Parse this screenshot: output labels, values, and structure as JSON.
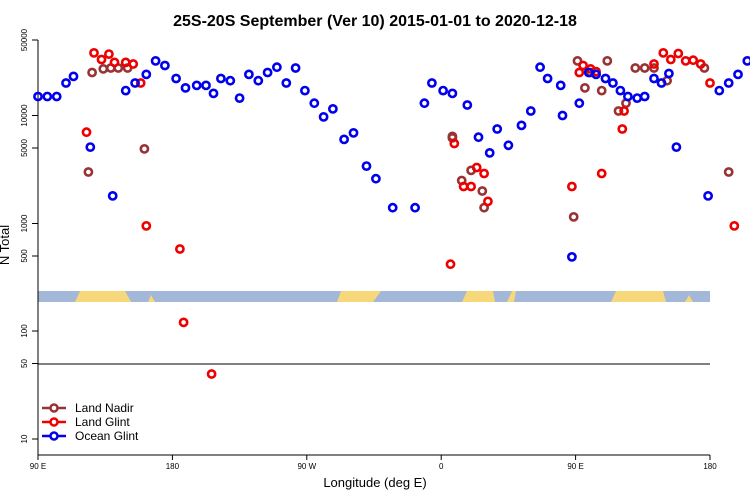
{
  "chart_data": {
    "type": "scatter",
    "title": "25S-20S September (Ver 10)   2015-01-01 to 2020-12-18",
    "xlabel": "Longitude (deg E)",
    "ylabel": "N Total",
    "x_axis": {
      "range": [
        90,
        450
      ],
      "ticks": [
        {
          "value": 90,
          "label": "90 E"
        },
        {
          "value": 180,
          "label": "180"
        },
        {
          "value": 270,
          "label": "90 W"
        },
        {
          "value": 360,
          "label": "0"
        },
        {
          "value": 450,
          "label": "90 E"
        },
        {
          "value": 540,
          "label": "180"
        }
      ]
    },
    "y_axis": {
      "scale": "log",
      "range": [
        1,
        50000
      ],
      "ticks": [
        {
          "value": 10,
          "label": "10"
        },
        {
          "value": 50,
          "label": "50"
        },
        {
          "value": 100,
          "label": "100"
        },
        {
          "value": 500,
          "label": "500"
        },
        {
          "value": 1000,
          "label": "1000"
        },
        {
          "value": 5000,
          "label": "5000"
        },
        {
          "value": 10000,
          "label": "10000"
        },
        {
          "value": 50000,
          "label": "50000"
        }
      ]
    },
    "grid": false,
    "legend_position": "bottom-left",
    "background_band": {
      "ocean_color": "#a3b8d8",
      "land_color": "#f6d77a"
    },
    "series": [
      {
        "name": "Land Nadir",
        "color": "#993333",
        "points": [
          [
            117,
            3000
          ],
          [
            119,
            25000
          ],
          [
            125,
            27000
          ],
          [
            129,
            27500
          ],
          [
            133,
            27500
          ],
          [
            138,
            27500
          ],
          [
            147,
            4900
          ],
          [
            312,
            6200
          ],
          [
            312,
            6400
          ],
          [
            317,
            2500
          ],
          [
            322,
            3100
          ],
          [
            328,
            2000
          ],
          [
            329,
            1400
          ],
          [
            377,
            1150
          ],
          [
            379,
            32000
          ],
          [
            383,
            18000
          ],
          [
            386,
            25000
          ],
          [
            392,
            17000
          ],
          [
            395,
            32000
          ],
          [
            401,
            11000
          ],
          [
            405,
            13000
          ],
          [
            410,
            27500
          ],
          [
            415,
            27500
          ],
          [
            420,
            27500
          ],
          [
            427,
            21000
          ],
          [
            447,
            27500
          ],
          [
            460,
            3000
          ],
          [
            480,
            4900
          ]
        ]
      },
      {
        "name": "Land Glint",
        "color": "#ee0000",
        "points": [
          [
            116,
            7000
          ],
          [
            120,
            38000
          ],
          [
            124,
            33000
          ],
          [
            128,
            37000
          ],
          [
            131,
            31000
          ],
          [
            137,
            31000
          ],
          [
            141,
            30000
          ],
          [
            145,
            20000
          ],
          [
            148,
            950
          ],
          [
            166,
            580
          ],
          [
            168,
            120
          ],
          [
            183,
            40
          ],
          [
            311,
            420
          ],
          [
            313,
            5500
          ],
          [
            318,
            2200
          ],
          [
            322,
            2200
          ],
          [
            325,
            3300
          ],
          [
            329,
            2900
          ],
          [
            331,
            1600
          ],
          [
            376,
            2200
          ],
          [
            380,
            25000
          ],
          [
            382,
            29000
          ],
          [
            386,
            27000
          ],
          [
            389,
            25500
          ],
          [
            392,
            2900
          ],
          [
            403,
            7500
          ],
          [
            404,
            11000
          ],
          [
            420,
            30000
          ],
          [
            425,
            38000
          ],
          [
            429,
            33000
          ],
          [
            433,
            37500
          ],
          [
            437,
            32000
          ],
          [
            441,
            32500
          ],
          [
            445,
            30000
          ],
          [
            450,
            20000
          ],
          [
            463,
            950
          ],
          [
            478,
            590
          ],
          [
            480,
            120
          ]
        ]
      },
      {
        "name": "Ocean Glint",
        "color": "#0000ee",
        "points": [
          [
            90,
            15000
          ],
          [
            95,
            15000
          ],
          [
            100,
            15000
          ],
          [
            105,
            20000
          ],
          [
            109,
            23000
          ],
          [
            118,
            5100
          ],
          [
            130,
            1800
          ],
          [
            137,
            17000
          ],
          [
            142,
            20000
          ],
          [
            148,
            24000
          ],
          [
            153,
            32000
          ],
          [
            158,
            29000
          ],
          [
            164,
            22000
          ],
          [
            169,
            18000
          ],
          [
            175,
            19000
          ],
          [
            180,
            19000
          ],
          [
            184,
            16000
          ],
          [
            188,
            22000
          ],
          [
            193,
            21000
          ],
          [
            198,
            14500
          ],
          [
            203,
            24000
          ],
          [
            208,
            21000
          ],
          [
            213,
            25000
          ],
          [
            218,
            28000
          ],
          [
            223,
            20000
          ],
          [
            228,
            27500
          ],
          [
            233,
            17000
          ],
          [
            238,
            13000
          ],
          [
            243,
            9700
          ],
          [
            248,
            11500
          ],
          [
            254,
            6000
          ],
          [
            259,
            6900
          ],
          [
            266,
            3400
          ],
          [
            271,
            2600
          ],
          [
            280,
            1400
          ],
          [
            292,
            1400
          ],
          [
            297,
            13000
          ],
          [
            301,
            20000
          ],
          [
            307,
            17000
          ],
          [
            312,
            16000
          ],
          [
            320,
            12500
          ],
          [
            326,
            6300
          ],
          [
            332,
            4500
          ],
          [
            336,
            7500
          ],
          [
            342,
            5300
          ],
          [
            349,
            8100
          ],
          [
            354,
            11000
          ],
          [
            359,
            28000
          ],
          [
            363,
            22000
          ],
          [
            370,
            19000
          ],
          [
            371,
            10000
          ],
          [
            376,
            490
          ],
          [
            380,
            13000
          ],
          [
            385,
            25000
          ],
          [
            389,
            24000
          ],
          [
            394,
            22000
          ],
          [
            398,
            20000
          ],
          [
            402,
            17000
          ],
          [
            406,
            15000
          ],
          [
            411,
            14500
          ],
          [
            415,
            15000
          ],
          [
            420,
            22000
          ],
          [
            424,
            20000
          ],
          [
            428,
            24500
          ],
          [
            432,
            5100
          ],
          [
            449,
            1800
          ],
          [
            455,
            17000
          ],
          [
            460,
            20000
          ],
          [
            465,
            24000
          ],
          [
            470,
            32000
          ],
          [
            475,
            29000
          ],
          [
            479,
            22000
          ]
        ]
      }
    ],
    "legend": [
      "Land Nadir",
      "Land Glint",
      "Ocean Glint"
    ]
  }
}
